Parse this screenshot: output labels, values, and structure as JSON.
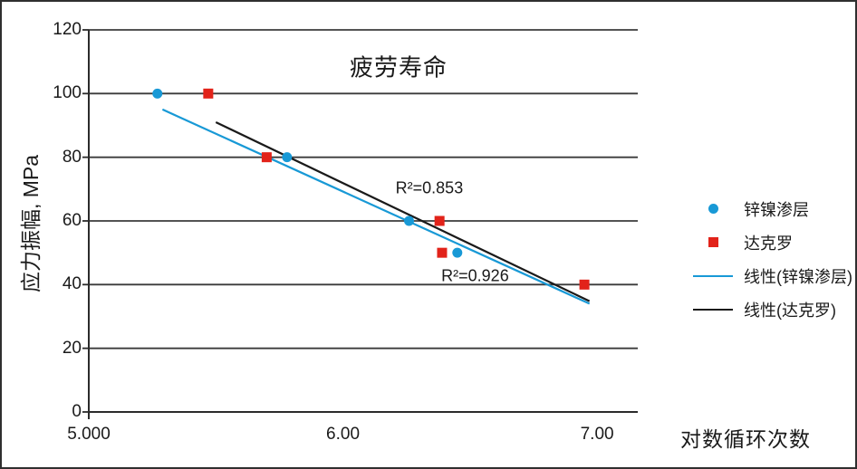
{
  "colors": {
    "series_blue": "#1899D6",
    "series_red": "#E2231A",
    "trend_black": "#1a1a1a",
    "grid": "#3b3b3b",
    "axis": "#2b2b2b",
    "text": "#1a1a1a"
  },
  "chart_data": {
    "type": "scatter",
    "title": "疲劳寿命",
    "xlabel": "对数循环次数",
    "ylabel": "应力振幅, MPa",
    "xlim": [
      5.0,
      7.16
    ],
    "ylim": [
      0,
      120
    ],
    "grid": "horizontal",
    "legend_position": "right",
    "x_ticks": [
      {
        "value": 5.0,
        "label": "5.000"
      },
      {
        "value": 6.0,
        "label": "6.00"
      },
      {
        "value": 7.0,
        "label": "7.00"
      }
    ],
    "y_ticks": [
      {
        "value": 0,
        "label": "0"
      },
      {
        "value": 20,
        "label": "20"
      },
      {
        "value": 40,
        "label": "40"
      },
      {
        "value": 60,
        "label": "60"
      },
      {
        "value": 80,
        "label": "80"
      },
      {
        "value": 100,
        "label": "100"
      },
      {
        "value": 120,
        "label": "120"
      }
    ],
    "series": [
      {
        "name": "锌镍渗层",
        "marker": "circle",
        "color": "#1899D6",
        "points": [
          [
            5.27,
            100
          ],
          [
            5.78,
            80
          ],
          [
            6.26,
            60
          ],
          [
            6.45,
            50
          ]
        ]
      },
      {
        "name": "达克罗",
        "marker": "square",
        "color": "#E2231A",
        "points": [
          [
            5.47,
            100
          ],
          [
            5.7,
            80
          ],
          [
            6.38,
            60
          ],
          [
            6.39,
            50
          ],
          [
            6.95,
            40
          ]
        ]
      }
    ],
    "trendlines": [
      {
        "name": "线性(锌镍渗层)",
        "color": "#1899D6",
        "from": [
          5.29,
          95
        ],
        "to": [
          6.97,
          34
        ]
      },
      {
        "name": "线性(达克罗)",
        "color": "#1a1a1a",
        "from": [
          5.5,
          91
        ],
        "to": [
          6.97,
          34.8
        ]
      }
    ],
    "annotations": [
      {
        "text": "R²=0.853",
        "x": 6.34,
        "y": 70.2
      },
      {
        "text": "R²=0.926",
        "x": 6.52,
        "y": 42.6
      }
    ],
    "legend": [
      {
        "swatch": "circle",
        "color": "#1899D6",
        "label": "锌镍渗层"
      },
      {
        "swatch": "square",
        "color": "#E2231A",
        "label": "达克罗"
      },
      {
        "swatch": "line",
        "color": "#1899D6",
        "label": "线性(锌镍渗层)"
      },
      {
        "swatch": "line",
        "color": "#1a1a1a",
        "label": "线性(达克罗)"
      }
    ]
  }
}
